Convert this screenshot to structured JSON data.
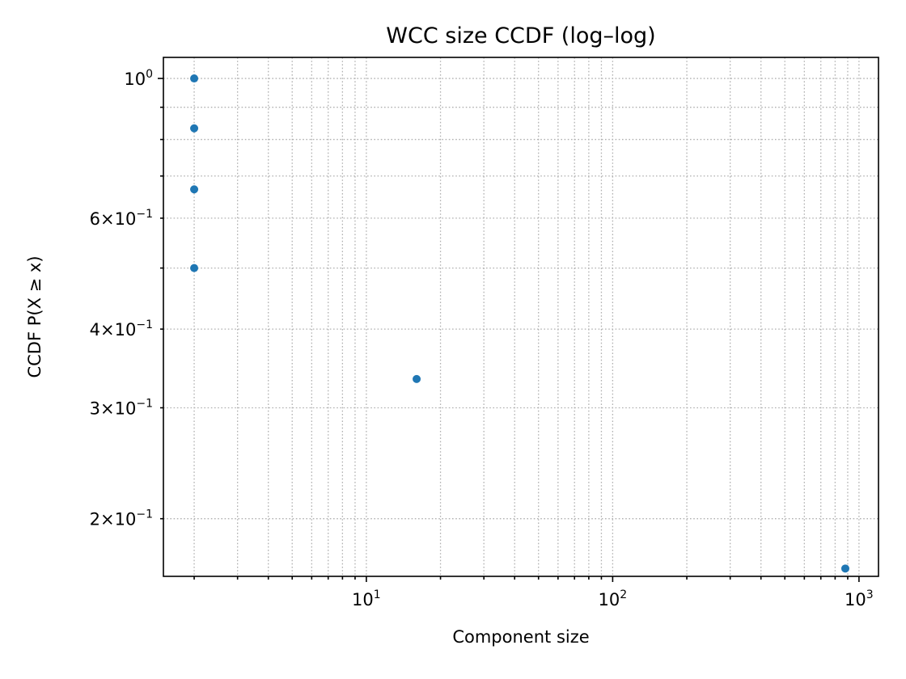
{
  "chart_data": {
    "type": "scatter",
    "title": "WCC size CCDF (log–log)",
    "xlabel": "Component size",
    "ylabel": "CCDF  P(X ≥ x)",
    "xscale": "log",
    "yscale": "log",
    "xlim": [
      1.5,
      1200
    ],
    "ylim": [
      0.162,
      1.08
    ],
    "grid": true,
    "grid_style": "dotted",
    "marker_color": "#1f77b4",
    "x_major_ticks": [
      {
        "value": 10,
        "base": "10",
        "exp": "1"
      },
      {
        "value": 100,
        "base": "10",
        "exp": "2"
      },
      {
        "value": 1000,
        "base": "10",
        "exp": "3"
      }
    ],
    "y_major_ticks": [
      {
        "value": 1.0,
        "mant": "",
        "base": "10",
        "exp": "0"
      },
      {
        "value": 0.6,
        "mant": "6",
        "base": "10",
        "exp": "−1"
      },
      {
        "value": 0.4,
        "mant": "4",
        "base": "10",
        "exp": "−1"
      },
      {
        "value": 0.3,
        "mant": "3",
        "base": "10",
        "exp": "−1"
      },
      {
        "value": 0.2,
        "mant": "2",
        "base": "10",
        "exp": "−1"
      }
    ],
    "points": [
      {
        "x": 2,
        "y": 1.0
      },
      {
        "x": 2,
        "y": 0.8333
      },
      {
        "x": 2,
        "y": 0.6667
      },
      {
        "x": 2,
        "y": 0.5
      },
      {
        "x": 16,
        "y": 0.3333
      },
      {
        "x": 880,
        "y": 0.1667
      }
    ]
  }
}
